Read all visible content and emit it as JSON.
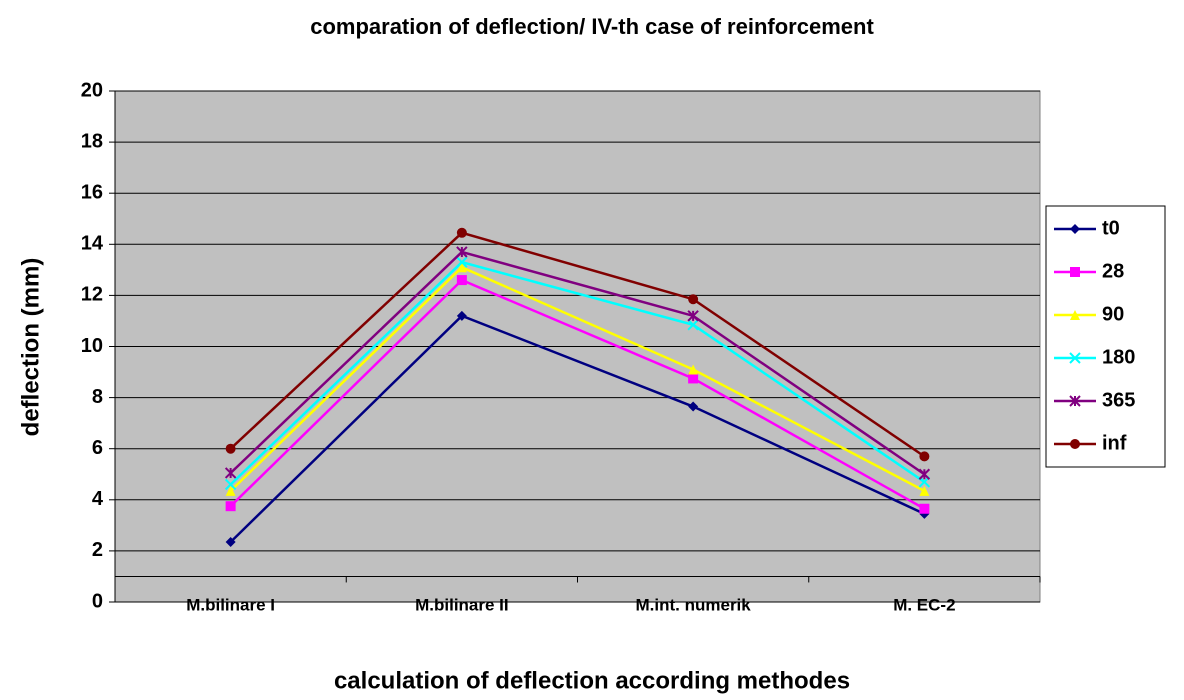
{
  "chart_data": {
    "type": "line",
    "title": "comparation of deflection/ IV-th case of reinforcement",
    "x_label": "calculation of deflection according methodes",
    "y_label": "deflection  (mm)",
    "categories": [
      "M.bilinare I",
      "M.bilinare II",
      "M.int. numerik",
      "M. EC-2"
    ],
    "series": [
      {
        "name": "t0",
        "color": "#000080",
        "marker": "diamond",
        "values": [
          2.35,
          11.2,
          7.65,
          3.45
        ]
      },
      {
        "name": "28",
        "color": "#ff00ff",
        "marker": "square",
        "values": [
          3.75,
          12.6,
          8.75,
          3.65
        ]
      },
      {
        "name": "90",
        "color": "#ffff00",
        "marker": "triangle",
        "values": [
          4.35,
          13.1,
          9.1,
          4.35
        ]
      },
      {
        "name": "180",
        "color": "#00ffff",
        "marker": "x",
        "values": [
          4.6,
          13.3,
          10.85,
          4.7
        ]
      },
      {
        "name": "365",
        "color": "#800080",
        "marker": "star",
        "values": [
          5.05,
          13.7,
          11.2,
          5.0
        ]
      },
      {
        "name": "inf",
        "color": "#800000",
        "marker": "circle",
        "values": [
          6.0,
          14.45,
          11.85,
          5.7
        ]
      }
    ],
    "ylim": [
      0,
      20
    ],
    "yticks": [
      0,
      2,
      4,
      6,
      8,
      10,
      12,
      14,
      16,
      18,
      20
    ],
    "x_axis_crosses": 1,
    "grid": true,
    "legend": "right",
    "plot_background": "#c0c0c0"
  }
}
